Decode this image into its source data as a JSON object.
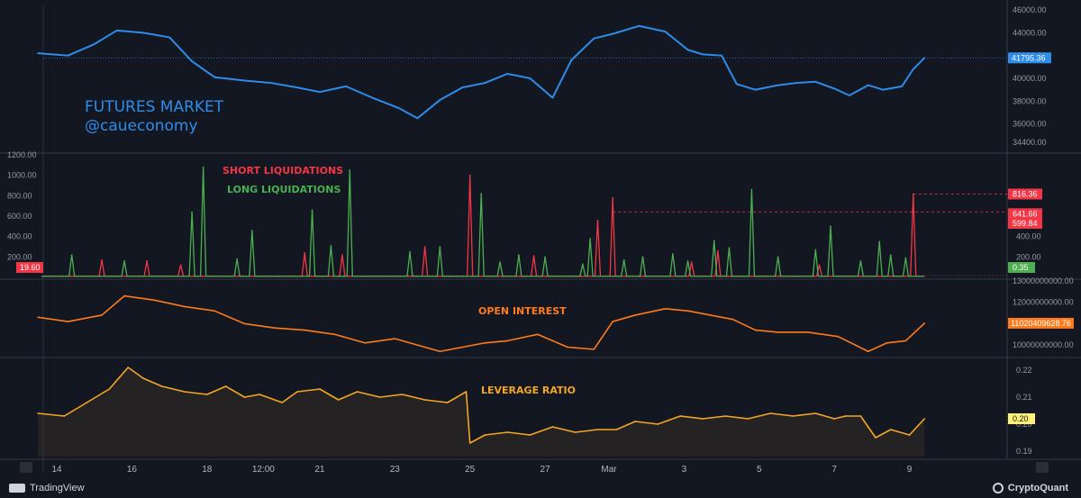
{
  "watermark": {
    "title": "FUTURES MARKET",
    "handle": "@caueconomy"
  },
  "footer": {
    "left_brand": "TradingView",
    "right_brand": "CryptoQuant"
  },
  "x_axis": {
    "ticks": [
      {
        "label": "14",
        "t": 0
      },
      {
        "label": "16",
        "t": 2
      },
      {
        "label": "18",
        "t": 4
      },
      {
        "label": "12:00",
        "t": 5.5
      },
      {
        "label": "21",
        "t": 7
      },
      {
        "label": "23",
        "t": 9
      },
      {
        "label": "25",
        "t": 11
      },
      {
        "label": "27",
        "t": 13
      },
      {
        "label": "Mar",
        "t": 14.7
      },
      {
        "label": "3",
        "t": 16.7
      },
      {
        "label": "5",
        "t": 18.7
      },
      {
        "label": "7",
        "t": 20.7
      },
      {
        "label": "9",
        "t": 22.7
      }
    ],
    "last_t": 23.1
  },
  "chart_data": [
    {
      "type": "line",
      "title": "",
      "color": "#2f8ce8",
      "ylim": [
        33600,
        46400
      ],
      "y_ticks": [
        "46000.00",
        "44000.00",
        "42000.00",
        "40000.00",
        "38000.00",
        "36000.00",
        "34400.00"
      ],
      "y_tick_values": [
        46000,
        44000,
        42000,
        40000,
        38000,
        36000,
        34400
      ],
      "last_value_label": "41795.36",
      "last_value": 41795.36,
      "x": [
        -0.5,
        0.3,
        1.0,
        1.6,
        2.3,
        3.0,
        3.6,
        4.2,
        5.0,
        5.7,
        6.4,
        7.0,
        7.7,
        8.4,
        9.1,
        9.6,
        10.2,
        10.8,
        11.4,
        12.0,
        12.6,
        13.2,
        13.7,
        14.3,
        14.8,
        15.5,
        16.2,
        16.8,
        17.2,
        17.7,
        18.1,
        18.6,
        19.2,
        19.7,
        20.2,
        20.7,
        21.1,
        21.6,
        22.0,
        22.5,
        22.8,
        23.1
      ],
      "values": [
        42200,
        42000,
        43000,
        44200,
        44000,
        43600,
        41500,
        40100,
        39800,
        39600,
        39200,
        38800,
        39300,
        38300,
        37400,
        36500,
        38100,
        39200,
        39600,
        40400,
        40000,
        38300,
        41600,
        43500,
        43900,
        44600,
        44100,
        42500,
        42100,
        42000,
        39500,
        39000,
        39400,
        39600,
        39700,
        39100,
        38500,
        39400,
        39000,
        39300,
        40800,
        41795.36
      ]
    },
    {
      "type": "line",
      "title": "",
      "ylim": [
        0,
        1200
      ],
      "y_ticks": [
        "1200.00",
        "1000.00",
        "800.00",
        "600.00",
        "400.00",
        "200.00"
      ],
      "y_tick_values": [
        1200,
        1000,
        800,
        600,
        400,
        200
      ],
      "right_ticks": [
        "400.00",
        "200.00"
      ],
      "right_tick_values": [
        400,
        200
      ],
      "series": [
        {
          "name": "SHORT LIQUIDATIONS",
          "color": "#f23645",
          "x": [
            1.2,
            2.4,
            3.3,
            6.6,
            7.6,
            9.8,
            11.0,
            12.7,
            14.4,
            14.8,
            16.9,
            17.6,
            20.3,
            22.8
          ],
          "values": [
            170,
            160,
            120,
            240,
            220,
            300,
            1000,
            210,
            560,
            780,
            150,
            260,
            120,
            816.36
          ]
        },
        {
          "name": "LONG LIQUIDATIONS",
          "color": "#4caf50",
          "x": [
            0.4,
            1.8,
            3.6,
            3.9,
            4.8,
            5.2,
            6.8,
            7.3,
            7.8,
            9.4,
            10.2,
            11.3,
            11.8,
            12.3,
            13.0,
            14.0,
            14.2,
            15.1,
            15.6,
            16.4,
            16.8,
            17.5,
            17.9,
            18.5,
            19.2,
            20.2,
            20.6,
            21.4,
            21.9,
            22.2,
            22.6
          ],
          "values": [
            220,
            160,
            640,
            1080,
            180,
            460,
            660,
            310,
            1050,
            250,
            300,
            820,
            150,
            220,
            200,
            130,
            380,
            170,
            200,
            230,
            160,
            360,
            290,
            860,
            200,
            270,
            500,
            160,
            350,
            220,
            190
          ]
        }
      ],
      "ref_lines": [
        816.36,
        641.66
      ],
      "badges": [
        {
          "label": "816.36",
          "color": "#f23645",
          "value": 816.36
        },
        {
          "label": "641.66",
          "color": "#f23645",
          "value": 641.66
        },
        {
          "label": "599.84",
          "color": "#f23645",
          "value": 599.84
        }
      ],
      "left_badge": {
        "label": "19.60",
        "color": "#f23645"
      },
      "last_long_label": "0.35"
    },
    {
      "type": "line",
      "title": "OPEN INTEREST",
      "color": "#ff7a1a",
      "ylim": [
        9500000000,
        13000000000
      ],
      "y_ticks": [
        "13000000000.00",
        "12000000000.00",
        "11000000000.00",
        "10000000000.00"
      ],
      "y_tick_values": [
        13000000000,
        12000000000,
        11000000000,
        10000000000
      ],
      "last_value_label": "11020409628.76",
      "last_value": 11020409628.76,
      "x": [
        -0.5,
        0.3,
        1.2,
        1.8,
        2.6,
        3.4,
        4.2,
        5.0,
        5.8,
        6.6,
        7.4,
        8.2,
        9.0,
        9.6,
        10.2,
        10.8,
        11.4,
        12.0,
        12.8,
        13.6,
        14.3,
        14.8,
        15.4,
        16.2,
        16.8,
        17.4,
        18.0,
        18.6,
        19.2,
        20.0,
        20.8,
        21.6,
        22.1,
        22.6,
        23.1
      ],
      "values": [
        11300000000,
        11100000000,
        11400000000,
        12300000000,
        12100000000,
        11800000000,
        11600000000,
        11000000000,
        10800000000,
        10700000000,
        10500000000,
        10100000000,
        10300000000,
        10000000000,
        9700000000,
        9900000000,
        10100000000,
        10200000000,
        10500000000,
        9900000000,
        9800000000,
        11100000000,
        11400000000,
        11700000000,
        11600000000,
        11400000000,
        11200000000,
        10700000000,
        10600000000,
        10600000000,
        10400000000,
        9700000000,
        10100000000,
        10200000000,
        11020409628.76
      ]
    },
    {
      "type": "area",
      "title": "LEVERAGE RATIO",
      "color": "#f5a623",
      "ylim": [
        0.188,
        0.224
      ],
      "y_ticks": [
        "0.22",
        "0.21",
        "0.20",
        "0.19"
      ],
      "y_tick_values": [
        0.22,
        0.21,
        0.2,
        0.19
      ],
      "last_value_label": "0.20",
      "last_value": 0.202,
      "x": [
        -0.5,
        0.2,
        0.8,
        1.4,
        1.9,
        2.3,
        2.8,
        3.4,
        4.0,
        4.5,
        5.0,
        5.4,
        6.0,
        6.4,
        7.0,
        7.5,
        8.0,
        8.6,
        9.2,
        9.8,
        10.4,
        10.9,
        11.0,
        11.4,
        12.0,
        12.6,
        13.2,
        13.8,
        14.4,
        14.9,
        15.4,
        16.0,
        16.6,
        17.2,
        17.8,
        18.4,
        19.0,
        19.6,
        20.2,
        20.7,
        21.0,
        21.4,
        21.8,
        22.2,
        22.7,
        23.1
      ],
      "values": [
        0.204,
        0.203,
        0.208,
        0.213,
        0.221,
        0.217,
        0.214,
        0.212,
        0.211,
        0.214,
        0.21,
        0.211,
        0.208,
        0.212,
        0.213,
        0.209,
        0.212,
        0.21,
        0.211,
        0.209,
        0.208,
        0.212,
        0.193,
        0.196,
        0.197,
        0.196,
        0.199,
        0.197,
        0.198,
        0.198,
        0.201,
        0.2,
        0.203,
        0.202,
        0.203,
        0.202,
        0.204,
        0.203,
        0.204,
        0.202,
        0.203,
        0.203,
        0.195,
        0.198,
        0.196,
        0.202
      ]
    }
  ]
}
